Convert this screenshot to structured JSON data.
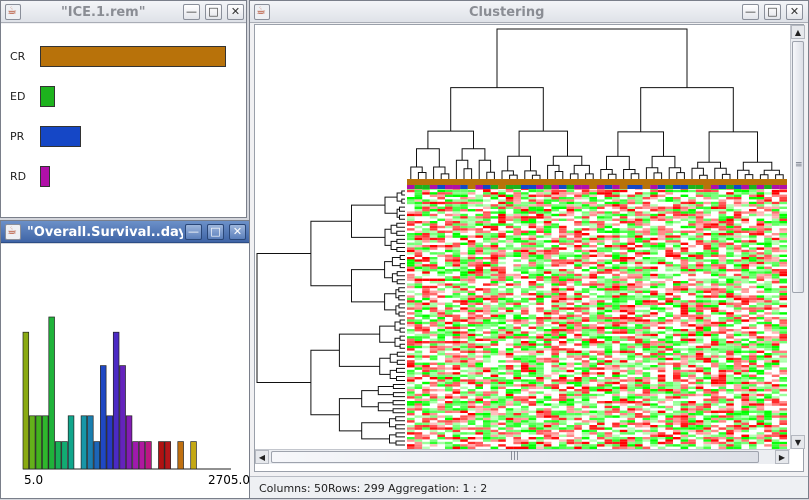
{
  "windows": {
    "response": {
      "title": "\"ICE.1.rem\"",
      "categories": [
        {
          "label": "CR",
          "count": 1.0,
          "color": "#b8720a"
        },
        {
          "label": "ED",
          "count": 0.08,
          "color": "#1db31d"
        },
        {
          "label": "PR",
          "count": 0.22,
          "color": "#1547c6"
        },
        {
          "label": "RD",
          "count": 0.05,
          "color": "#b10fa8"
        }
      ]
    },
    "survival": {
      "title": "\"Overall.Survival..days",
      "x_min_label": "5.0",
      "x_max_label": "2705.0",
      "bars": [
        {
          "value": 0.9,
          "color": "#8aaa12"
        },
        {
          "value": 0.35,
          "color": "#64b01a"
        },
        {
          "value": 0.35,
          "color": "#42b21e"
        },
        {
          "value": 0.35,
          "color": "#2fb62c"
        },
        {
          "value": 1.0,
          "color": "#1fb33a"
        },
        {
          "value": 0.18,
          "color": "#17b057"
        },
        {
          "value": 0.18,
          "color": "#12ab72"
        },
        {
          "value": 0.35,
          "color": "#10a68c"
        },
        {
          "value": 0,
          "color": "#ffffff"
        },
        {
          "value": 0.35,
          "color": "#1796a8"
        },
        {
          "value": 0.35,
          "color": "#1a7eb0"
        },
        {
          "value": 0.18,
          "color": "#1d65b8"
        },
        {
          "value": 0.68,
          "color": "#1f48c4"
        },
        {
          "value": 0.35,
          "color": "#2838c6"
        },
        {
          "value": 0.9,
          "color": "#4b2ac4"
        },
        {
          "value": 0.68,
          "color": "#6423bc"
        },
        {
          "value": 0.35,
          "color": "#821cb4"
        },
        {
          "value": 0.18,
          "color": "#9f1aad"
        },
        {
          "value": 0.18,
          "color": "#b018a0"
        },
        {
          "value": 0.18,
          "color": "#bd1683"
        },
        {
          "value": 0,
          "color": "#ffffff"
        },
        {
          "value": 0.18,
          "color": "#b01212"
        },
        {
          "value": 0.18,
          "color": "#b5161a"
        },
        {
          "value": 0,
          "color": "#ffffff"
        },
        {
          "value": 0.18,
          "color": "#c07010"
        },
        {
          "value": 0,
          "color": "#ffffff"
        },
        {
          "value": 0.18,
          "color": "#c4a814"
        }
      ]
    },
    "clustering": {
      "title": "Clustering",
      "status": {
        "columns": "Columns: 50",
        "rows": "Rows: 299",
        "aggregation": "Aggregation: 1 : 2"
      },
      "heatmap": {
        "columns": 50,
        "rows": 299
      },
      "column_groups": [
        "#b8720a",
        "#1db31d",
        "#1547c6",
        "#b10fa8"
      ]
    }
  },
  "icons": {
    "minimize": "minimize-icon",
    "maximize": "maximize-icon",
    "close": "close-icon",
    "java": "java-cup-icon"
  },
  "glyphs": {
    "minimize": "—",
    "maximize": "□",
    "close": "✕",
    "up": "▲",
    "down": "▼",
    "left": "◀",
    "right": "▶",
    "grip_v": "≡",
    "grip_h": "|||"
  }
}
